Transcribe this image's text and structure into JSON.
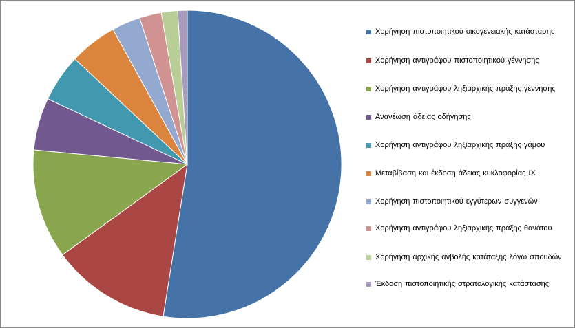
{
  "chart_data": {
    "type": "pie",
    "title": "",
    "legend_position": "right",
    "slices": [
      {
        "label": "Χορήγηση πιστοποιητικού οικογενειακής κατάστασης",
        "value": 52.5,
        "color": "#4572A7"
      },
      {
        "label": "Χορήγηση αντιγράφου πιστοποιητικού γέννησης",
        "value": 12.5,
        "color": "#AA4643"
      },
      {
        "label": "Χορήγηση αντιγράφου ληξιαρχικής πράξης γέννησης",
        "value": 11.5,
        "color": "#89A54E"
      },
      {
        "label": "Ανανέωση άδειας οδήγησης",
        "value": 5.5,
        "color": "#71588F"
      },
      {
        "label": "Χορήγηση αντιγράφου ληξιαρχικής πράξης γάμου",
        "value": 5.0,
        "color": "#4198AF"
      },
      {
        "label": "Μεταβίβαση και έκδοση άδειας κυκλοφορίας ΙΧ",
        "value": 5.0,
        "color": "#DB843D"
      },
      {
        "label": "Χορήγηση πιστοποιητικού εγγύτερων συγγενών",
        "value": 3.0,
        "color": "#93A9CF"
      },
      {
        "label": "Χορήγηση αντιγράφου ληξιαρχικής πράξης θανάτου",
        "value": 2.3,
        "color": "#D19392"
      },
      {
        "label": "Χορήγηση αρχικής ανβολής κατάταξης λόγω σπουδών",
        "value": 1.7,
        "color": "#B9CD96"
      },
      {
        "label": "Έκδοση πιστοποιητικής στρατολογικής κατάστασης",
        "value": 1.0,
        "color": "#A99BBD"
      }
    ]
  }
}
